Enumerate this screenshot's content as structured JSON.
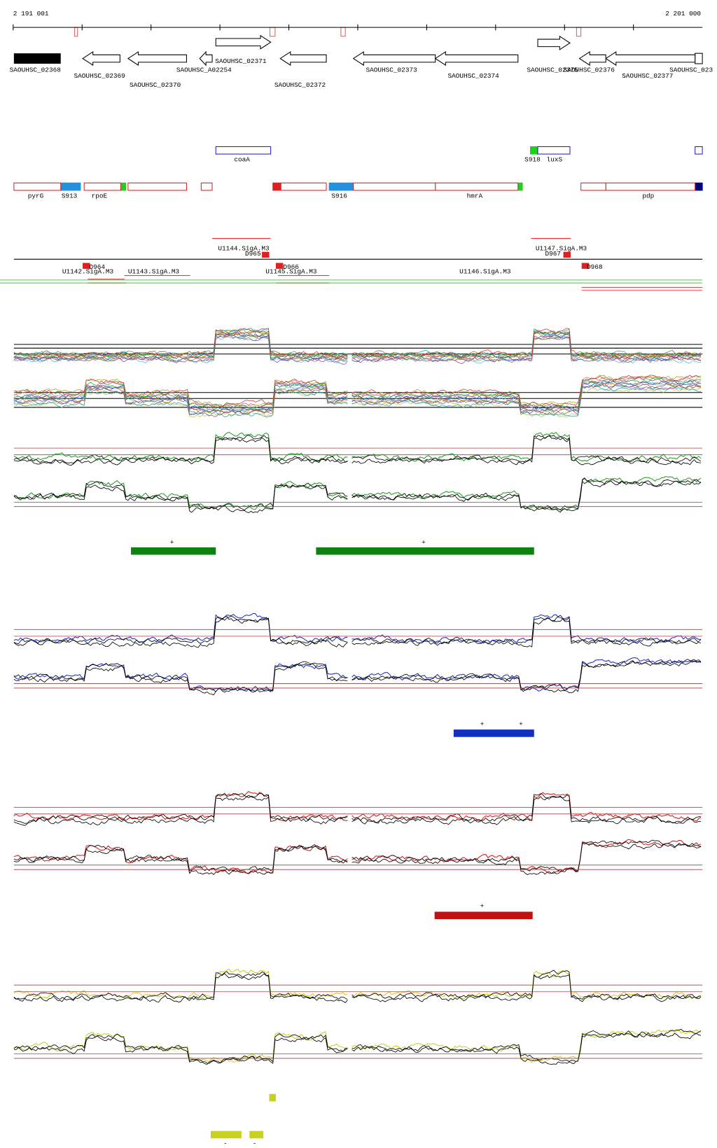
{
  "ruler": {
    "start": "2 191 001",
    "end": "2 201 000"
  },
  "genes": [
    "SAOUHSC_02368",
    "SAOUHSC_02369",
    "SAOUHSC_02370",
    "SAOUHSC_A02254",
    "SAOUHSC_02371",
    "SAOUHSC_02372",
    "SAOUHSC_02373",
    "SAOUHSC_02374",
    "SAOUHSC_02375",
    "SAOUHSC_02376",
    "SAOUHSC_02377",
    "SAOUHSC_023"
  ],
  "features": [
    "coaA",
    "S918",
    "luxS",
    "pyrG",
    "S913",
    "rpoE",
    "S916",
    "hmrA",
    "pdp"
  ],
  "promoters": [
    "U1144.SigA.M3",
    "D965",
    "U1147.SigA.M3",
    "D967",
    "D964",
    "U1142.SigA.M3",
    "U1143.SigA.M3",
    "D966",
    "U1145.SigA.M3",
    "U1146.SigA.M3",
    "D968"
  ],
  "marks": [
    "+",
    "+",
    "+",
    "+",
    "+",
    "-",
    "-"
  ]
}
